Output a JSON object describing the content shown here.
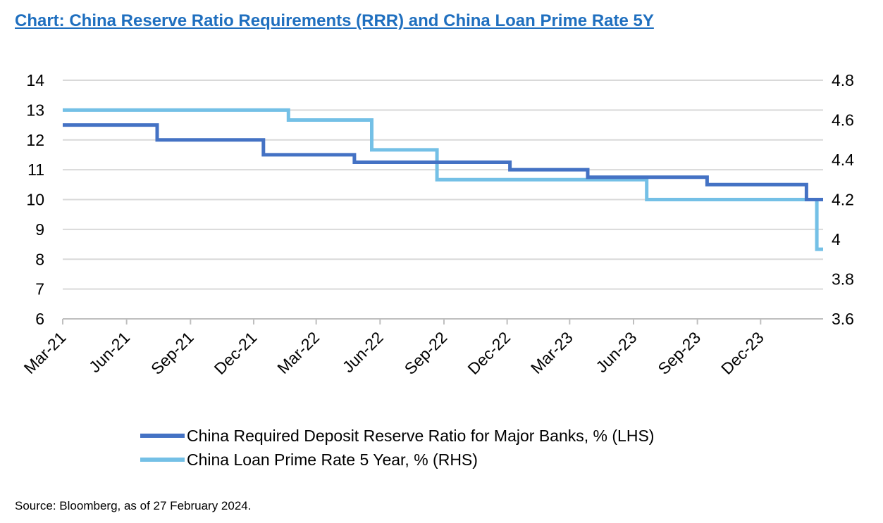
{
  "title": "Chart: China Reserve Ratio Requirements (RRR) and China Loan Prime Rate 5Y",
  "source": "Source: Bloomberg, as of 27 February 2024.",
  "colors": {
    "rrr": "#4472c4",
    "lpr": "#74c0e6",
    "grid": "#d9d9d9",
    "title": "#1f6fbf"
  },
  "chart_data": {
    "type": "line",
    "step": true,
    "grid": true,
    "legend_position": "bottom",
    "x_range": [
      "2021-03-01",
      "2024-02-29"
    ],
    "x_ticks": [
      {
        "date": "2021-03-01",
        "label": "Mar-21"
      },
      {
        "date": "2021-06-01",
        "label": "Jun-21"
      },
      {
        "date": "2021-09-01",
        "label": "Sep-21"
      },
      {
        "date": "2021-12-01",
        "label": "Dec-21"
      },
      {
        "date": "2022-03-01",
        "label": "Mar-22"
      },
      {
        "date": "2022-06-01",
        "label": "Jun-22"
      },
      {
        "date": "2022-09-01",
        "label": "Sep-22"
      },
      {
        "date": "2022-12-01",
        "label": "Dec-22"
      },
      {
        "date": "2023-03-01",
        "label": "Mar-23"
      },
      {
        "date": "2023-06-01",
        "label": "Jun-23"
      },
      {
        "date": "2023-09-01",
        "label": "Sep-23"
      },
      {
        "date": "2023-12-01",
        "label": "Dec-23"
      }
    ],
    "y_left": {
      "min": 6,
      "max": 14,
      "ticks": [
        "6",
        "7",
        "8",
        "9",
        "10",
        "11",
        "12",
        "13",
        "14"
      ]
    },
    "y_right": {
      "min": 3.6,
      "max": 4.8,
      "ticks": [
        "3.6",
        "3.8",
        "4",
        "4.2",
        "4.4",
        "4.6",
        "4.8"
      ]
    },
    "series": [
      {
        "name": "China Required Deposit Reserve Ratio for Major Banks, % (LHS)",
        "axis": "left",
        "color": "#4472c4",
        "points": [
          {
            "date": "2021-03-01",
            "value": 12.5
          },
          {
            "date": "2021-07-15",
            "value": 12.0
          },
          {
            "date": "2021-12-15",
            "value": 11.5
          },
          {
            "date": "2022-04-25",
            "value": 11.25
          },
          {
            "date": "2022-12-05",
            "value": 11.0
          },
          {
            "date": "2023-03-27",
            "value": 10.75
          },
          {
            "date": "2023-09-15",
            "value": 10.5
          },
          {
            "date": "2024-02-05",
            "value": 10.0
          },
          {
            "date": "2024-02-29",
            "value": 10.0
          }
        ]
      },
      {
        "name": "China Loan Prime Rate 5 Year, % (RHS)",
        "axis": "right",
        "color": "#74c0e6",
        "points": [
          {
            "date": "2021-03-01",
            "value": 4.65
          },
          {
            "date": "2022-01-20",
            "value": 4.6
          },
          {
            "date": "2022-05-20",
            "value": 4.45
          },
          {
            "date": "2022-08-22",
            "value": 4.3
          },
          {
            "date": "2023-06-20",
            "value": 4.2
          },
          {
            "date": "2024-02-20",
            "value": 3.95
          },
          {
            "date": "2024-02-29",
            "value": 3.95
          }
        ]
      }
    ]
  }
}
